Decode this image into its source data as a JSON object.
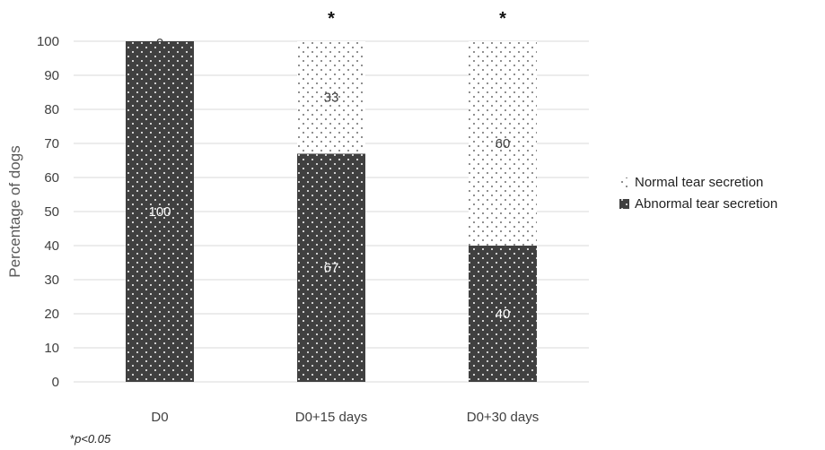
{
  "chart_data": {
    "type": "bar",
    "stacked": true,
    "categories": [
      "D0",
      "D0+15 days",
      "D0+30 days"
    ],
    "series": [
      {
        "name": "Abnormal tear secretion",
        "values": [
          100,
          67,
          40
        ],
        "color": "#404040",
        "pattern": "white-dots-on-dark"
      },
      {
        "name": "Normal tear secretion",
        "values": [
          0,
          33,
          60
        ],
        "color": "#ffffff",
        "pattern": "dark-dots-on-light"
      }
    ],
    "ylabel": "Percentage of dogs",
    "xlabel": "",
    "ylim": [
      0,
      100
    ],
    "yticks": [
      0,
      10,
      20,
      30,
      40,
      50,
      60,
      70,
      80,
      90,
      100
    ],
    "grid": true,
    "legend_position": "right",
    "significance_markers": [
      "",
      "*",
      "*"
    ],
    "footnote": {
      "symbol": "*",
      "text": "p<0.05"
    }
  }
}
